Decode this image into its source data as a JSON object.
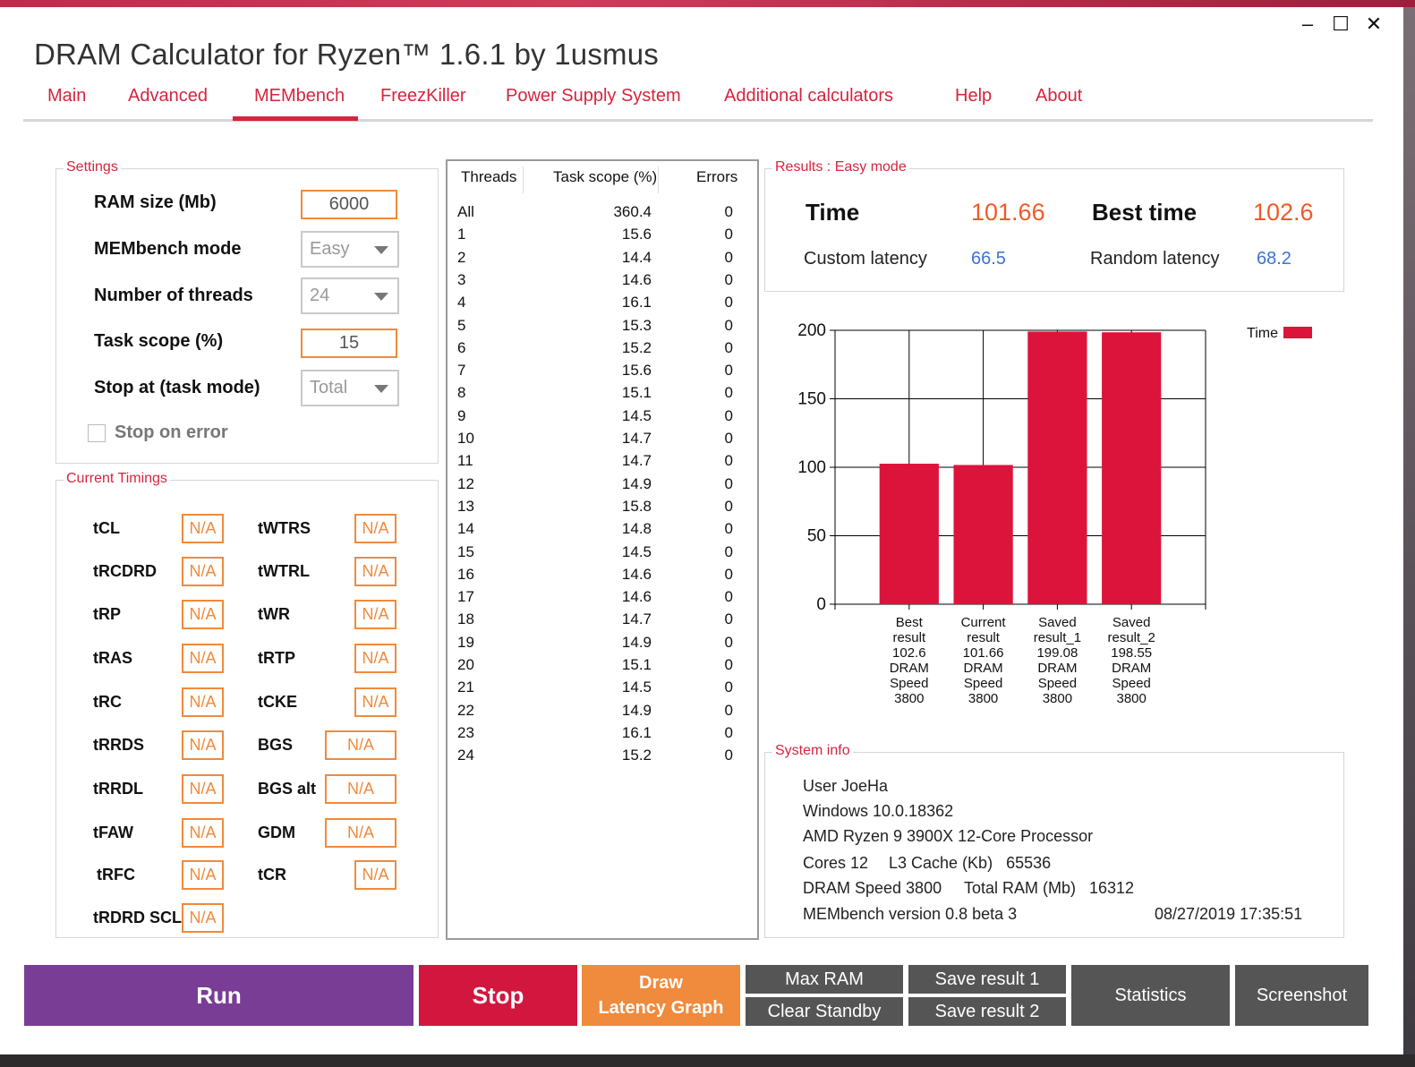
{
  "window": {
    "title": "DRAM Calculator for Ryzen™ 1.6.1 by 1usmus",
    "minimize": "‒",
    "maximize": "☐",
    "close": "✕"
  },
  "tabs": [
    "Main",
    "Advanced",
    "MEMbench",
    "FreezKiller",
    "Power Supply System",
    "Additional calculators",
    "Help",
    "About"
  ],
  "active_tab": "MEMbench",
  "settings": {
    "legend": "Settings",
    "ram_size_label": "RAM size (Mb)",
    "ram_size_value": "6000",
    "mode_label": "MEMbench mode",
    "mode_value": "Easy",
    "threads_label": "Number of threads",
    "threads_value": "24",
    "task_scope_label": "Task scope (%)",
    "task_scope_value": "15",
    "stop_at_label": "Stop at (task mode)",
    "stop_at_value": "Total",
    "stop_on_error_label": "Stop on error"
  },
  "timings": {
    "legend": "Current Timings",
    "left": [
      {
        "name": "tCL",
        "value": "N/A"
      },
      {
        "name": "tRCDRD",
        "value": "N/A"
      },
      {
        "name": "tRP",
        "value": "N/A"
      },
      {
        "name": "tRAS",
        "value": "N/A"
      },
      {
        "name": "tRC",
        "value": "N/A"
      },
      {
        "name": "tRRDS",
        "value": "N/A"
      },
      {
        "name": "tRRDL",
        "value": "N/A"
      },
      {
        "name": "tFAW",
        "value": "N/A"
      },
      {
        "name": "tRFC",
        "value": "N/A"
      },
      {
        "name": "tRDRD SCL",
        "value": "N/A"
      }
    ],
    "right": [
      {
        "name": "tWTRS",
        "value": "N/A"
      },
      {
        "name": "tWTRL",
        "value": "N/A"
      },
      {
        "name": "tWR",
        "value": "N/A"
      },
      {
        "name": "tRTP",
        "value": "N/A"
      },
      {
        "name": "tCKE",
        "value": "N/A"
      },
      {
        "name": "BGS",
        "value": "N/A"
      },
      {
        "name": "BGS alt",
        "value": "N/A"
      },
      {
        "name": "GDM",
        "value": "N/A"
      },
      {
        "name": "tCR",
        "value": "N/A"
      }
    ]
  },
  "threads_table": {
    "headers": [
      "Threads",
      "Task scope (%)",
      "Errors"
    ],
    "rows": [
      [
        "All",
        "360.4",
        "0"
      ],
      [
        "1",
        "15.6",
        "0"
      ],
      [
        "2",
        "14.4",
        "0"
      ],
      [
        "3",
        "14.6",
        "0"
      ],
      [
        "4",
        "16.1",
        "0"
      ],
      [
        "5",
        "15.3",
        "0"
      ],
      [
        "6",
        "15.2",
        "0"
      ],
      [
        "7",
        "15.6",
        "0"
      ],
      [
        "8",
        "15.1",
        "0"
      ],
      [
        "9",
        "14.5",
        "0"
      ],
      [
        "10",
        "14.7",
        "0"
      ],
      [
        "11",
        "14.7",
        "0"
      ],
      [
        "12",
        "14.9",
        "0"
      ],
      [
        "13",
        "15.8",
        "0"
      ],
      [
        "14",
        "14.8",
        "0"
      ],
      [
        "15",
        "14.5",
        "0"
      ],
      [
        "16",
        "14.6",
        "0"
      ],
      [
        "17",
        "14.6",
        "0"
      ],
      [
        "18",
        "14.7",
        "0"
      ],
      [
        "19",
        "14.9",
        "0"
      ],
      [
        "20",
        "15.1",
        "0"
      ],
      [
        "21",
        "14.5",
        "0"
      ],
      [
        "22",
        "14.9",
        "0"
      ],
      [
        "23",
        "16.1",
        "0"
      ],
      [
        "24",
        "15.2",
        "0"
      ]
    ]
  },
  "results": {
    "legend": "Results : Easy mode",
    "time_label": "Time",
    "time_value": "101.66",
    "best_time_label": "Best time",
    "best_time_value": "102.6",
    "custom_latency_label": "Custom latency",
    "custom_latency_value": "66.5",
    "random_latency_label": "Random latency",
    "random_latency_value": "68.2"
  },
  "chart_data": {
    "type": "bar",
    "categories": [
      [
        "Best",
        "result",
        "102.6",
        "DRAM",
        "Speed",
        "3800"
      ],
      [
        "Current",
        "result",
        "101.66",
        "DRAM",
        "Speed",
        "3800"
      ],
      [
        "Saved",
        "result_1",
        "199.08",
        "DRAM",
        "Speed",
        "3800"
      ],
      [
        "Saved",
        "result_2",
        "198.55",
        "DRAM",
        "Speed",
        "3800"
      ]
    ],
    "series": [
      {
        "name": "Time",
        "values": [
          102.6,
          101.66,
          199.08,
          198.55
        ],
        "color": "#dc143c"
      }
    ],
    "ylim": [
      0,
      200
    ],
    "yticks": [
      "0",
      "50",
      "100",
      "150",
      "200"
    ],
    "grid": true,
    "legend_position": "top-right"
  },
  "system_info": {
    "legend": "System info",
    "user": "User JoeHa",
    "os": "Windows 10.0.18362",
    "cpu": "AMD Ryzen 9 3900X 12-Core Processor",
    "cores": "Cores 12",
    "l3": "L3 Cache (Kb)   65536",
    "dram_speed": "DRAM Speed 3800",
    "total_ram": "Total RAM (Mb)   16312",
    "version": "MEMbench version 0.8 beta 3",
    "timestamp": "08/27/2019 17:35:51"
  },
  "buttons": {
    "run": "Run",
    "stop": "Stop",
    "draw_line1": "Draw",
    "draw_line2": "Latency Graph",
    "max_ram": "Max RAM",
    "clear_standby": "Clear Standby",
    "save1": "Save result 1",
    "save2": "Save result 2",
    "statistics": "Statistics",
    "screenshot": "Screenshot"
  },
  "colors": {
    "accent": "#d6243f",
    "orange": "#f08a3c",
    "purple": "#7a3d96",
    "bar": "#dc143c",
    "latency_blue": "#3d72d0"
  }
}
